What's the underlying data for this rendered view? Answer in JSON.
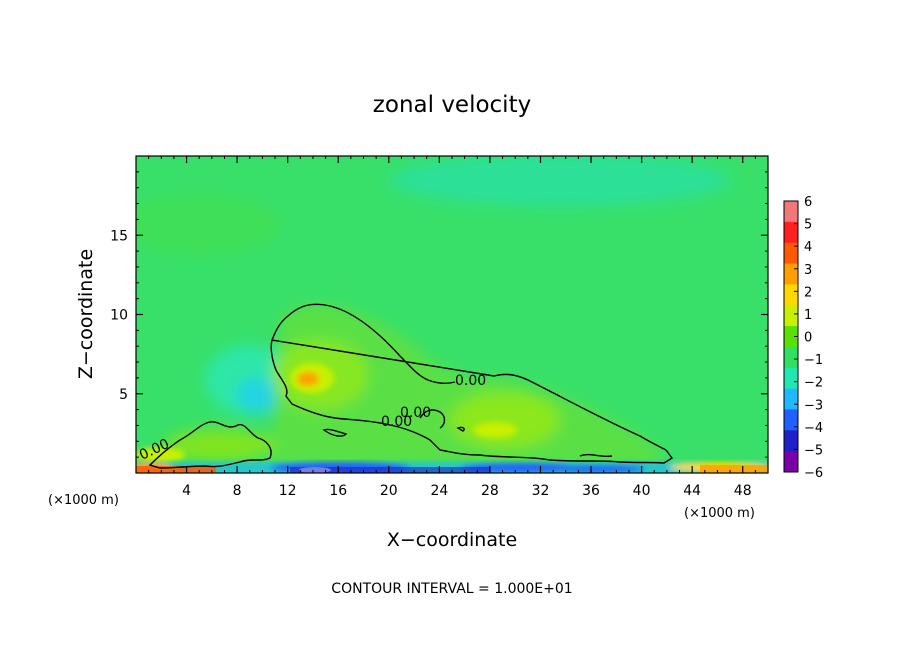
{
  "chart_data": {
    "type": "heatmap",
    "title": "zonal velocity",
    "xlabel": "X−coordinate",
    "ylabel": "Z−coordinate",
    "x_unit_left": "(×1000 m)",
    "x_unit_right": "(×1000 m)",
    "xlim": [
      0,
      50
    ],
    "ylim": [
      0,
      20
    ],
    "x_ticks": [
      4,
      8,
      12,
      16,
      20,
      24,
      28,
      32,
      36,
      40,
      44,
      48
    ],
    "y_ticks": [
      5,
      10,
      15
    ],
    "colorbar": {
      "ticks": [
        6,
        5,
        4,
        3,
        2,
        1,
        0,
        -1,
        -2,
        -3,
        -4,
        -5,
        -6
      ],
      "tick_labels": [
        "6",
        "5",
        "4",
        "3",
        "2",
        "1",
        "0",
        "−1",
        "−2",
        "−3",
        "−4",
        "−5",
        "−6"
      ],
      "colors": [
        "#f07878",
        "#ff2020",
        "#ff5a00",
        "#ffa000",
        "#ffd800",
        "#c8f000",
        "#58e000",
        "#30e060",
        "#20e8b0",
        "#20b8ff",
        "#2060ff",
        "#2020c8",
        "#7a00a8"
      ]
    },
    "contour_levels": [
      0.0
    ],
    "contour_labels": [
      "0.00",
      "0.00",
      "0.00",
      "0.00"
    ],
    "contour_interval_text": "CONTOUR INTERVAL = 1.000E+01",
    "grid": false
  }
}
